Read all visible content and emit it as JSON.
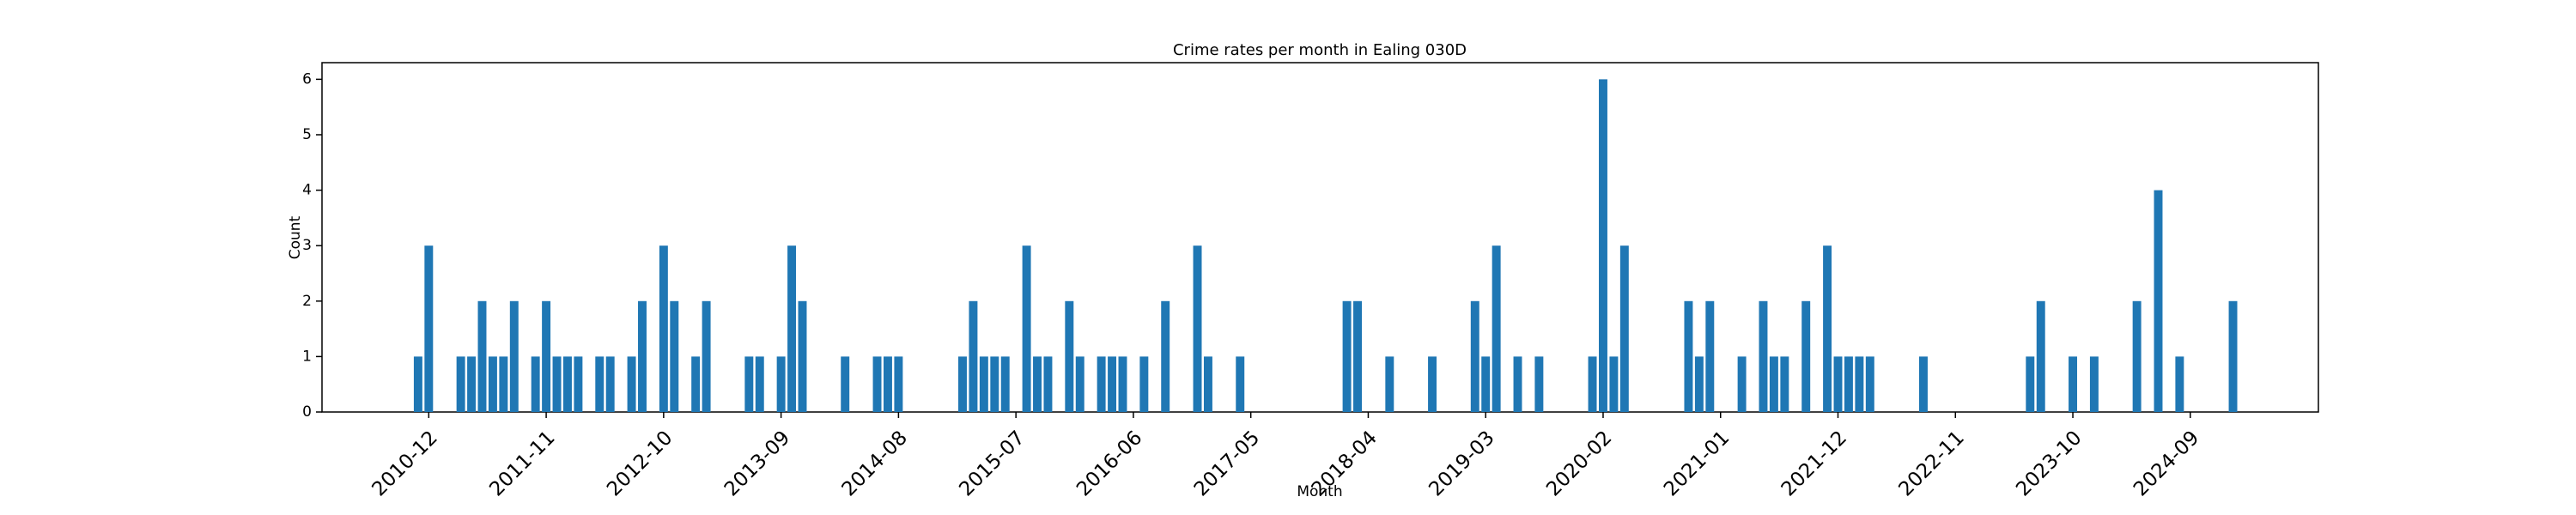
{
  "chart_data": {
    "type": "bar",
    "title": "Crime rates per month in Ealing 030D",
    "xlabel": "Month",
    "ylabel": "Count",
    "color": "#1f77b4",
    "x": [
      "2010-11",
      "2010-12",
      "2011-03",
      "2011-04",
      "2011-05",
      "2011-06",
      "2011-07",
      "2011-08",
      "2011-10",
      "2011-11",
      "2011-12",
      "2012-01",
      "2012-02",
      "2012-04",
      "2012-05",
      "2012-07",
      "2012-08",
      "2012-10",
      "2012-11",
      "2013-01",
      "2013-02",
      "2013-06",
      "2013-07",
      "2013-09",
      "2013-10",
      "2013-11",
      "2014-03",
      "2014-06",
      "2014-07",
      "2014-08",
      "2015-02",
      "2015-03",
      "2015-04",
      "2015-05",
      "2015-06",
      "2015-08",
      "2015-09",
      "2015-10",
      "2015-12",
      "2016-01",
      "2016-03",
      "2016-04",
      "2016-05",
      "2016-07",
      "2016-09",
      "2016-12",
      "2017-01",
      "2017-04",
      "2018-02",
      "2018-03",
      "2018-06",
      "2018-10",
      "2019-02",
      "2019-03",
      "2019-04",
      "2019-06",
      "2019-08",
      "2020-01",
      "2020-02",
      "2020-03",
      "2020-04",
      "2020-10",
      "2020-11",
      "2020-12",
      "2021-03",
      "2021-05",
      "2021-06",
      "2021-07",
      "2021-09",
      "2021-11",
      "2021-12",
      "2022-01",
      "2022-02",
      "2022-03",
      "2022-08",
      "2023-06",
      "2023-07",
      "2023-10",
      "2023-12",
      "2024-04",
      "2024-06",
      "2024-08",
      "2025-01"
    ],
    "values": [
      1,
      3,
      1,
      1,
      2,
      1,
      1,
      2,
      1,
      2,
      1,
      1,
      1,
      1,
      1,
      1,
      2,
      3,
      2,
      1,
      2,
      1,
      1,
      1,
      3,
      2,
      1,
      1,
      1,
      1,
      1,
      2,
      1,
      1,
      1,
      3,
      1,
      1,
      2,
      1,
      1,
      1,
      1,
      1,
      2,
      3,
      1,
      1,
      2,
      2,
      1,
      1,
      2,
      1,
      3,
      1,
      1,
      1,
      6,
      1,
      3,
      2,
      1,
      2,
      1,
      2,
      1,
      1,
      2,
      3,
      1,
      1,
      1,
      1,
      1,
      1,
      2,
      1,
      1,
      2,
      4,
      1,
      2
    ],
    "xlim": [
      "2010-02",
      "2025-09"
    ],
    "xticks": [
      "2010-12",
      "2011-11",
      "2012-10",
      "2013-09",
      "2014-08",
      "2015-07",
      "2016-06",
      "2017-05",
      "2018-04",
      "2019-03",
      "2020-02",
      "2021-01",
      "2021-12",
      "2022-11",
      "2023-10",
      "2024-09"
    ],
    "ylim": [
      0,
      6.3
    ],
    "yticks": [
      0,
      1,
      2,
      3,
      4,
      5,
      6
    ]
  }
}
